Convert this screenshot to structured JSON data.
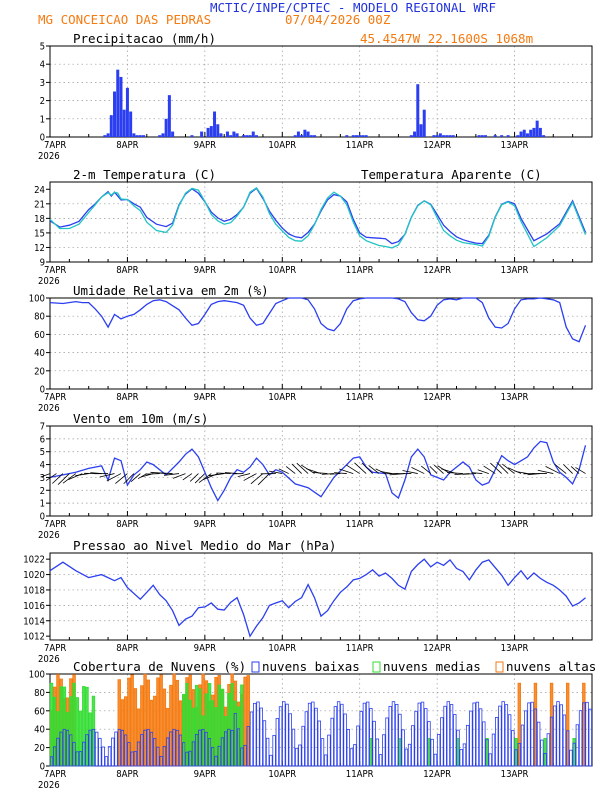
{
  "header": {
    "title": "MCTIC/INPE/CPTEC - MODELO REGIONAL WRF",
    "location": "MG CONCEICAO DAS PEDRAS",
    "run": "07/04/2026 00Z",
    "coords": "45.4547W 22.1600S 1068m"
  },
  "colors": {
    "blue": "#2b3ff0",
    "cyan": "#22c4c4",
    "orange": "#f57a10",
    "green": "#33dd33",
    "title_blue": "#2233dd"
  },
  "xaxis": {
    "day_labels": [
      "7APR",
      "8APR",
      "9APR",
      "10APR",
      "11APR",
      "12APR",
      "13APR"
    ],
    "year": "2026"
  },
  "chart_data": [
    {
      "type": "bar",
      "title": "Precipitacao (mm/h)",
      "ylim": [
        0,
        5
      ],
      "yticks": [
        0,
        1,
        2,
        3,
        4,
        5
      ],
      "x_unit": "hours since 07/04/2026 00Z",
      "series": [
        {
          "name": "",
          "x": [
            17,
            18,
            19,
            20,
            21,
            22,
            23,
            24,
            25,
            26,
            27,
            28,
            29,
            34,
            35,
            36,
            37,
            38,
            44,
            47,
            49,
            50,
            51,
            52,
            53,
            55,
            56,
            57,
            58,
            60,
            61,
            62,
            63,
            64,
            76,
            77,
            78,
            79,
            80,
            81,
            82,
            92,
            94,
            95,
            96,
            97,
            98,
            112,
            113,
            114,
            115,
            116,
            119,
            120,
            121,
            122,
            123,
            124,
            125,
            133,
            134,
            135,
            138,
            140,
            142,
            145,
            146,
            147,
            148,
            149,
            150,
            151,
            152,
            153
          ],
          "values": [
            0.1,
            0.2,
            1.2,
            2.5,
            3.7,
            3.3,
            1.5,
            2.7,
            1.4,
            0.2,
            0.1,
            0.1,
            0.1,
            0.1,
            0.2,
            1.0,
            2.3,
            0.3,
            0.1,
            0.3,
            0.5,
            0.6,
            1.4,
            0.7,
            0.2,
            0.3,
            0.1,
            0.3,
            0.2,
            0.1,
            0.1,
            0.1,
            0.3,
            0.1,
            0.1,
            0.3,
            0.1,
            0.4,
            0.3,
            0.1,
            0.1,
            0.1,
            0.1,
            0.1,
            0.1,
            0.1,
            0.1,
            0.1,
            0.3,
            2.9,
            0.7,
            1.5,
            0.1,
            0.1,
            0.2,
            0.1,
            0.1,
            0.1,
            0.1,
            0.1,
            0.1,
            0.1,
            0.1,
            0.1,
            0.1,
            0.1,
            0.3,
            0.4,
            0.2,
            0.4,
            0.5,
            0.9,
            0.5,
            0.1
          ]
        }
      ]
    },
    {
      "type": "line",
      "title": "2-m Temperatura (C)",
      "ylim": [
        9,
        25.5
      ],
      "yticks": [
        9,
        12,
        15,
        18,
        21,
        24
      ],
      "series": [
        {
          "name": "",
          "color": "blue",
          "x": [
            0,
            3,
            6,
            9,
            12,
            14,
            16,
            18,
            19,
            20,
            21,
            22,
            24,
            26,
            28,
            30,
            33,
            36,
            38,
            40,
            42,
            44,
            46,
            48,
            50,
            52,
            54,
            56,
            58,
            60,
            62,
            64,
            66,
            68,
            70,
            72,
            74,
            76,
            78,
            80,
            82,
            84,
            86,
            88,
            90,
            92,
            94,
            96,
            98,
            100,
            102,
            104,
            106,
            108,
            110,
            112,
            114,
            116,
            118,
            120,
            122,
            124,
            126,
            128,
            130,
            132,
            134,
            136,
            138,
            140,
            142,
            144,
            146,
            150,
            154,
            158,
            162,
            166
          ],
          "values": [
            17.5,
            16.2,
            16.6,
            17.4,
            19.8,
            21.0,
            22.4,
            23.5,
            22.6,
            23.4,
            22.6,
            21.8,
            21.9,
            21.0,
            20.3,
            18.2,
            16.8,
            16.3,
            17.0,
            20.8,
            23.0,
            24.1,
            23.2,
            21.4,
            19.3,
            18.1,
            17.4,
            17.8,
            18.8,
            20.3,
            23.2,
            24.2,
            22.1,
            19.5,
            17.6,
            16.0,
            14.8,
            14.2,
            14.0,
            15.1,
            16.8,
            19.5,
            21.8,
            22.9,
            22.6,
            21.4,
            17.8,
            15.0,
            14.1,
            14.0,
            13.9,
            13.8,
            12.8,
            13.2,
            14.7,
            18.2,
            20.7,
            21.6,
            20.9,
            18.8,
            16.6,
            15.3,
            14.2,
            13.6,
            13.2,
            12.9,
            12.8,
            14.5,
            18.3,
            20.9,
            21.5,
            21.0,
            18.0,
            13.4,
            14.8,
            16.9,
            21.6,
            15.1
          ]
        },
        {
          "name": "Temperatura Aparente (C)",
          "color": "cyan",
          "x": [
            0,
            3,
            6,
            9,
            12,
            14,
            16,
            18,
            19,
            20,
            21,
            22,
            24,
            26,
            28,
            30,
            33,
            36,
            38,
            40,
            42,
            44,
            46,
            48,
            50,
            52,
            54,
            56,
            58,
            60,
            62,
            64,
            66,
            68,
            70,
            72,
            74,
            76,
            78,
            80,
            82,
            84,
            86,
            88,
            90,
            92,
            94,
            96,
            98,
            100,
            102,
            104,
            106,
            108,
            110,
            112,
            114,
            116,
            118,
            120,
            122,
            124,
            126,
            128,
            130,
            132,
            134,
            136,
            138,
            140,
            142,
            144,
            146,
            150,
            154,
            158,
            162,
            166
          ],
          "values": [
            17.8,
            15.9,
            15.9,
            16.8,
            19.2,
            20.8,
            22.4,
            23.3,
            22.8,
            23.4,
            23.2,
            22.0,
            21.9,
            20.6,
            19.6,
            17.2,
            15.5,
            15.1,
            16.6,
            20.6,
            23.2,
            24.2,
            23.8,
            21.5,
            18.8,
            17.5,
            16.8,
            17.1,
            18.5,
            20.3,
            23.4,
            24.3,
            22.4,
            19.0,
            16.8,
            15.4,
            14.1,
            13.4,
            13.3,
            14.4,
            16.7,
            19.8,
            22.2,
            23.4,
            22.6,
            20.8,
            17.2,
            14.4,
            13.4,
            12.9,
            12.4,
            12.2,
            11.9,
            12.5,
            14.7,
            18.2,
            20.6,
            21.6,
            20.8,
            18.2,
            15.5,
            14.4,
            13.5,
            13.0,
            12.8,
            12.6,
            12.3,
            14.3,
            18.2,
            20.8,
            21.4,
            20.6,
            17.4,
            12.2,
            14.0,
            16.5,
            21.3,
            14.6
          ]
        }
      ]
    },
    {
      "type": "line",
      "title": "Umidade Relativa em 2m (%)",
      "ylim": [
        0,
        100
      ],
      "yticks": [
        0,
        20,
        40,
        60,
        80,
        100
      ],
      "series": [
        {
          "name": "",
          "x": [
            0,
            4,
            8,
            10,
            12,
            14,
            16,
            18,
            20,
            22,
            24,
            26,
            28,
            30,
            32,
            34,
            36,
            40,
            42,
            44,
            46,
            48,
            50,
            52,
            54,
            56,
            58,
            60,
            62,
            64,
            66,
            68,
            70,
            72,
            74,
            76,
            78,
            80,
            82,
            84,
            86,
            88,
            90,
            92,
            94,
            96,
            98,
            100,
            102,
            104,
            106,
            108,
            110,
            112,
            114,
            116,
            118,
            120,
            122,
            124,
            126,
            128,
            130,
            132,
            134,
            136,
            138,
            140,
            142,
            144,
            146,
            148,
            150,
            152,
            154,
            156,
            158,
            160,
            162,
            164,
            166
          ],
          "values": [
            95,
            94,
            96,
            95,
            95,
            88,
            80,
            68,
            82,
            77,
            80,
            82,
            87,
            93,
            97,
            98,
            96,
            87,
            78,
            70,
            72,
            82,
            93,
            96,
            97,
            96,
            95,
            92,
            78,
            70,
            72,
            83,
            94,
            97,
            100,
            100,
            100,
            98,
            88,
            72,
            66,
            64,
            72,
            88,
            97,
            99,
            100,
            100,
            100,
            100,
            100,
            99,
            96,
            84,
            76,
            75,
            80,
            92,
            98,
            99,
            98,
            100,
            100,
            100,
            95,
            78,
            68,
            67,
            72,
            88,
            98,
            99,
            99,
            100,
            99,
            98,
            95,
            68,
            55,
            52,
            70
          ]
        }
      ]
    },
    {
      "type": "line",
      "title": "Vento em 10m (m/s)",
      "ylim": [
        0,
        7
      ],
      "yticks": [
        0,
        1,
        2,
        3,
        4,
        5,
        6,
        7
      ],
      "series": [
        {
          "name": "",
          "x": [
            0,
            4,
            8,
            12,
            16,
            18,
            20,
            22,
            24,
            26,
            28,
            30,
            32,
            36,
            40,
            42,
            44,
            46,
            48,
            50,
            52,
            54,
            56,
            58,
            60,
            62,
            64,
            66,
            68,
            70,
            72,
            76,
            80,
            84,
            88,
            92,
            94,
            96,
            98,
            100,
            104,
            106,
            108,
            110,
            112,
            114,
            116,
            118,
            120,
            122,
            124,
            126,
            128,
            130,
            132,
            134,
            136,
            138,
            140,
            142,
            144,
            148,
            150,
            152,
            154,
            156,
            158,
            160,
            162,
            164,
            166
          ],
          "values": [
            3.0,
            3.2,
            3.4,
            3.7,
            3.9,
            2.8,
            4.5,
            4.3,
            2.4,
            3.2,
            3.6,
            4.2,
            4.0,
            3.2,
            4.2,
            4.8,
            5.2,
            4.6,
            3.4,
            2.2,
            1.2,
            2.0,
            3.0,
            3.6,
            3.4,
            3.8,
            4.5,
            4.0,
            3.2,
            3.6,
            3.4,
            2.5,
            2.2,
            1.5,
            3.0,
            4.0,
            4.5,
            4.6,
            3.8,
            3.4,
            3.3,
            1.8,
            1.4,
            2.8,
            4.6,
            5.2,
            4.6,
            3.2,
            3.0,
            2.8,
            3.4,
            3.8,
            4.2,
            3.8,
            2.8,
            2.4,
            2.6,
            3.6,
            4.7,
            4.3,
            4.0,
            4.6,
            5.3,
            5.8,
            5.7,
            4.2,
            3.4,
            3.0,
            2.5,
            3.6,
            5.5
          ]
        }
      ],
      "vectors_note": "wind direction arrows"
    },
    {
      "type": "line",
      "title": "Pressao ao Nivel Medio do Mar (hPa)",
      "ylim": [
        1011.5,
        1022.8
      ],
      "yticks": [
        1012,
        1014,
        1016,
        1018,
        1020,
        1022
      ],
      "series": [
        {
          "name": "",
          "x": [
            0,
            4,
            8,
            12,
            16,
            20,
            22,
            24,
            28,
            30,
            32,
            34,
            36,
            38,
            40,
            42,
            44,
            46,
            48,
            50,
            52,
            54,
            56,
            58,
            60,
            62,
            64,
            66,
            68,
            70,
            72,
            74,
            76,
            78,
            80,
            82,
            84,
            86,
            88,
            90,
            92,
            94,
            96,
            98,
            100,
            102,
            104,
            106,
            108,
            110,
            112,
            114,
            116,
            118,
            120,
            122,
            124,
            126,
            128,
            130,
            132,
            134,
            136,
            138,
            140,
            142,
            144,
            146,
            148,
            150,
            152,
            154,
            156,
            158,
            160,
            162,
            164,
            166
          ],
          "values": [
            1020.5,
            1021.6,
            1020.5,
            1019.6,
            1020.0,
            1019.2,
            1019.6,
            1018.3,
            1016.8,
            1017.7,
            1018.6,
            1017.4,
            1016.6,
            1015.3,
            1013.4,
            1014.2,
            1014.6,
            1015.7,
            1015.8,
            1016.3,
            1015.5,
            1015.4,
            1016.4,
            1017.0,
            1014.8,
            1012.0,
            1013.3,
            1014.4,
            1016.0,
            1016.3,
            1016.6,
            1015.7,
            1016.5,
            1017.0,
            1018.7,
            1017.0,
            1014.6,
            1015.3,
            1016.6,
            1017.7,
            1018.4,
            1019.3,
            1019.5,
            1020.0,
            1020.6,
            1019.8,
            1020.2,
            1019.5,
            1018.6,
            1018.1,
            1020.4,
            1021.3,
            1022.0,
            1021.0,
            1021.6,
            1021.2,
            1021.9,
            1020.8,
            1020.4,
            1019.3,
            1020.6,
            1021.6,
            1021.9,
            1020.9,
            1019.9,
            1018.6,
            1019.6,
            1020.5,
            1019.4,
            1020.2,
            1019.5,
            1019.0,
            1018.6,
            1018.0,
            1017.2,
            1015.9,
            1016.3,
            1017.0
          ]
        }
      ]
    },
    {
      "type": "bar",
      "title": "Cobertura de Nuvens (%)",
      "ylim": [
        0,
        100
      ],
      "yticks": [
        0,
        20,
        40,
        60,
        80,
        100
      ],
      "series": [
        {
          "name": "nuvens baixas",
          "color": "blue"
        },
        {
          "name": "nuvens medias",
          "color": "green"
        },
        {
          "name": "nuvens altas",
          "color": "orange"
        }
      ]
    }
  ]
}
